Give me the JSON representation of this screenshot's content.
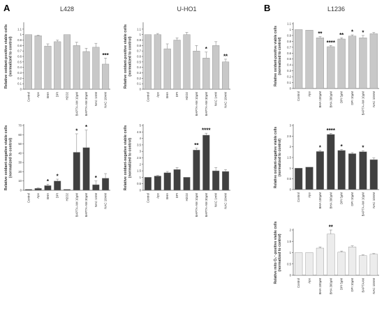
{
  "panels": {
    "A": {
      "letter": "A"
    },
    "B": {
      "letter": "B"
    }
  },
  "colors": {
    "light_bar": "#c8c8c8",
    "dark_bar": "#404040",
    "pale_bar": "#ececec",
    "bar_stroke": "#8a8a8a",
    "axis": "#555555",
    "text": "#333333"
  },
  "chart_data": [
    {
      "id": "L428-positive",
      "type": "bar",
      "title": "L428",
      "ylabel": "Relative oxidant-positive viable cells (normalized to control)",
      "ylim": [
        0,
        1.2
      ],
      "yticks": [
        "0",
        "0.1",
        "0.2",
        "0.3",
        "0.4",
        "0.5",
        "0.6",
        "0.7",
        "0.8",
        "0.9",
        "1",
        "1.1"
      ],
      "categories": [
        "Control",
        "Apo",
        "BHA",
        "DPI",
        "H2O2",
        "BAPTA-AM 10μM",
        "BAPTA-AM 30μM",
        "NAC 1mM",
        "NAC 10mM"
      ],
      "values": [
        1.0,
        0.98,
        0.79,
        0.87,
        1.0,
        0.8,
        0.69,
        0.77,
        0.46
      ],
      "errors": [
        0,
        0.01,
        0.04,
        0.03,
        0,
        0.06,
        0.06,
        0.07,
        0.11
      ],
      "annotations": [
        "",
        "",
        "",
        "",
        "",
        "",
        "",
        "",
        "***"
      ],
      "grid": false
    },
    {
      "id": "UHO1-positive",
      "type": "bar",
      "title": "U-HO1",
      "ylabel": "Relative oxidant-positive viable cells (normalized to control)",
      "ylim": [
        0,
        1.2
      ],
      "yticks": [
        "0",
        "0.1",
        "0.2",
        "0.3",
        "0.4",
        "0.5",
        "0.6",
        "0.7",
        "0.8",
        "0.9",
        "1",
        "1.1"
      ],
      "categories": [
        "Control",
        "Apo",
        "BHA",
        "DPI",
        "H2O2",
        "BAPTA-AM 10μM",
        "BAPTA-AM 30μM",
        "NAC 1mM",
        "NAC 10mM"
      ],
      "values": [
        1.0,
        1.0,
        0.74,
        0.9,
        1.0,
        0.7,
        0.57,
        0.8,
        0.5
      ],
      "errors": [
        0,
        0.02,
        0.09,
        0.04,
        0.04,
        0.1,
        0.11,
        0.07,
        0.05
      ],
      "annotations": [
        "",
        "",
        "",
        "",
        "",
        "",
        "*",
        "",
        "**"
      ],
      "grid": false
    },
    {
      "id": "L1236-positive",
      "type": "bar",
      "title": "L1236",
      "ylabel": "Relative oxidant-positive viable cells (normalized to control)",
      "ylim": [
        0,
        1.1
      ],
      "yticks": [
        "0",
        "0.1",
        "0.2",
        "0.3",
        "0.4",
        "0.5",
        "0.6",
        "0.7",
        "0.8",
        "0.9",
        "1",
        "1.1"
      ],
      "categories": [
        "Control",
        "Apo",
        "BHA 100μM",
        "BHA 300μM",
        "DPI 5μM",
        "DPI 10μM",
        "BAPTA-AM 10μM",
        "NAC 10mM"
      ],
      "values": [
        1.0,
        0.99,
        0.86,
        0.71,
        0.84,
        0.89,
        0.86,
        0.93
      ],
      "errors": [
        0,
        0,
        0.02,
        0.02,
        0.02,
        0.02,
        0.04,
        0.02
      ],
      "annotations": [
        "",
        "",
        "**",
        "****",
        "**",
        "*",
        "*",
        ""
      ],
      "grid": false
    },
    {
      "id": "L428-negative",
      "type": "bar",
      "title": "",
      "ylabel": "Relative oxidant-negative viable cells (normalized to control)",
      "ylim": [
        0,
        70
      ],
      "yticks": [
        "0",
        "10",
        "20",
        "30",
        "40",
        "50",
        "60",
        "70"
      ],
      "categories": [
        "Control",
        "Apo",
        "BHA",
        "DPI",
        "H2O2",
        "BAPTA-AM 10μM",
        "BAPTA-AM 30μM",
        "NAC 1mM",
        "NAC 10mM"
      ],
      "values": [
        1,
        2,
        5,
        10,
        1,
        41,
        46,
        6,
        13
      ],
      "errors": [
        0,
        0.5,
        1.5,
        2,
        0,
        20,
        19,
        4,
        5
      ],
      "annotations": [
        "",
        "",
        "*",
        "*",
        "",
        "*",
        "*",
        "*",
        ""
      ],
      "grid": false
    },
    {
      "id": "UHO1-negative",
      "type": "bar",
      "title": "",
      "ylabel": "Relative oxidant-negative viable cells (normalized to control)",
      "ylim": [
        0,
        5
      ],
      "yticks": [
        "0",
        "0.5",
        "1",
        "1.5",
        "2",
        "2.5",
        "3",
        "3.5",
        "4",
        "4.5",
        "5"
      ],
      "categories": [
        "Control",
        "Apo",
        "BHA",
        "DPI",
        "H2O2",
        "BAPTA-AM 10μM",
        "BAPTA-AM 30μM",
        "NAC 1mM",
        "NAC 10mM"
      ],
      "values": [
        1.0,
        1.1,
        1.35,
        1.6,
        1.0,
        3.1,
        4.25,
        1.5,
        1.45
      ],
      "errors": [
        0,
        0.05,
        0.1,
        0.15,
        0,
        0.15,
        0.15,
        0.25,
        0.15
      ],
      "annotations": [
        "",
        "",
        "",
        "",
        "",
        "**",
        "****",
        "",
        ""
      ],
      "grid": false
    },
    {
      "id": "L1236-negative",
      "type": "bar",
      "title": "",
      "ylabel": "Relative oxidant-negative viable cells (normalized to control)",
      "ylim": [
        0,
        3
      ],
      "yticks": [
        "0",
        "0.5",
        "1",
        "1.5",
        "2",
        "2.5",
        "3"
      ],
      "categories": [
        "Control",
        "Apo",
        "BHA 100μM",
        "BHA 300μM",
        "DPI 5μM",
        "DPI 10μM",
        "BAPTA-AM 10μM",
        "NAC 10mM"
      ],
      "values": [
        1.0,
        1.05,
        1.78,
        2.58,
        1.83,
        1.68,
        1.77,
        1.4
      ],
      "errors": [
        0,
        0,
        0.05,
        0.05,
        0.05,
        0.05,
        0.05,
        0.08
      ],
      "annotations": [
        "",
        "",
        "*",
        "****",
        "*",
        "",
        "*",
        ""
      ],
      "grid": false
    },
    {
      "id": "L1236-mito",
      "type": "bar",
      "title": "",
      "ylabel": "Relative mito O₂⁻-positive viable cells (normalized to control)",
      "ylim": [
        0,
        2
      ],
      "yticks": [
        "0",
        "0.5",
        "1",
        "1.5",
        "2"
      ],
      "categories": [
        "Control",
        "Apo",
        "BHA 100μM",
        "BHA 300μM",
        "DPI 5μM",
        "DPI 10μM",
        "BAPTAAM",
        "NAC 10mM"
      ],
      "values": [
        1.0,
        1.0,
        1.2,
        1.82,
        1.02,
        1.25,
        0.87,
        0.93
      ],
      "errors": [
        0,
        0,
        0.05,
        0.18,
        0.05,
        0.05,
        0.03,
        0.03
      ],
      "annotations": [
        "",
        "",
        "",
        "**",
        "",
        "",
        "",
        ""
      ],
      "grid": false
    }
  ]
}
